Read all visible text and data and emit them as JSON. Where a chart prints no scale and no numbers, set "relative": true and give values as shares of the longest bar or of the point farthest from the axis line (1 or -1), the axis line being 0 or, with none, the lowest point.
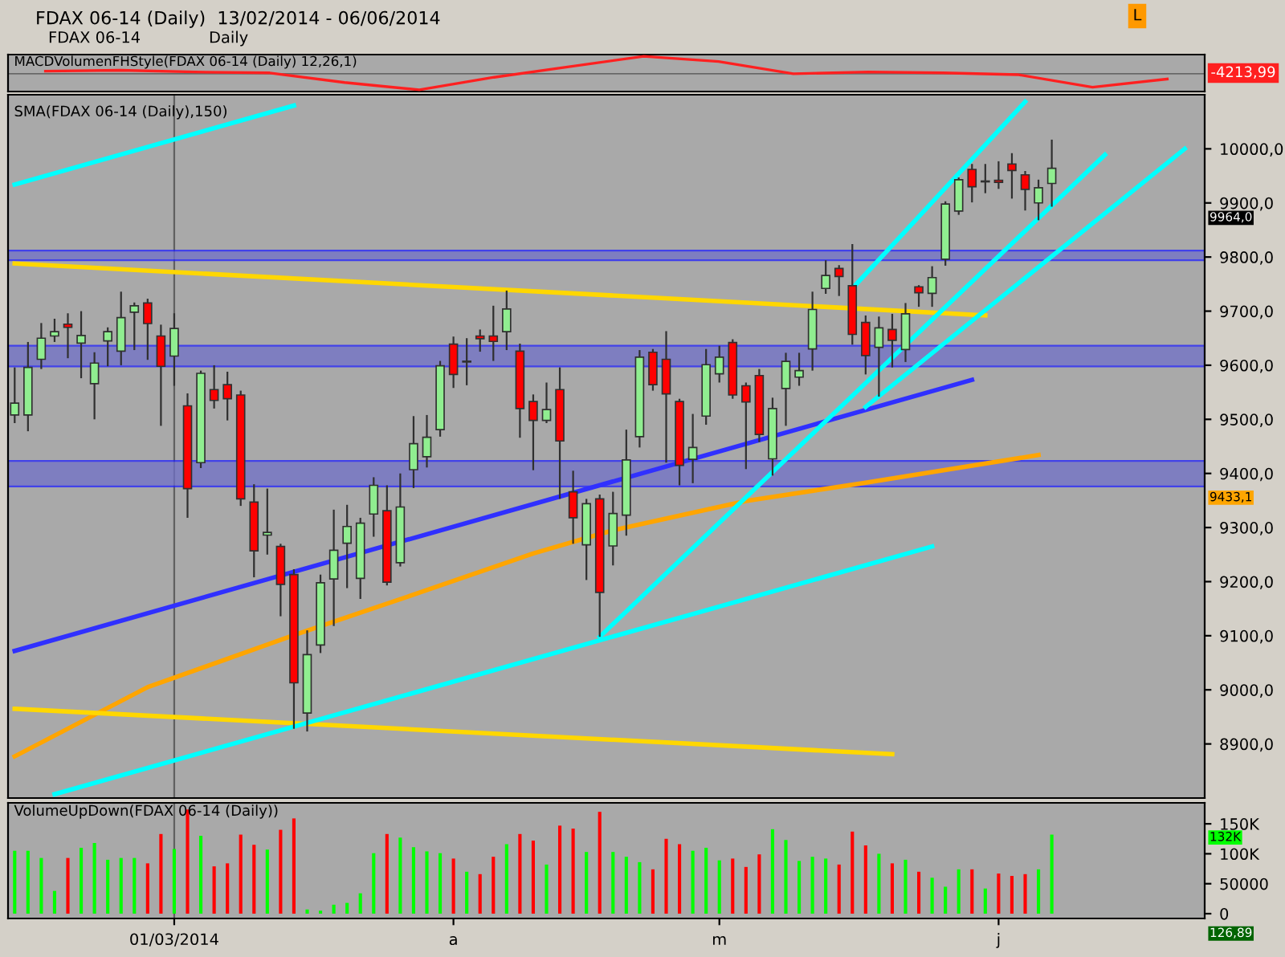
{
  "chart_data": [
    {
      "type": "line",
      "relative": true,
      "title": "FDAX 06-14 (Daily)  13/02/2014 - 06/06/2014",
      "tick_labels": false,
      "annotations": [
        "FDAX 06-14",
        "Daily",
        "L",
        "MACDVolumenFHStyle(FDAX 06-14 (Daily) 12,26,1)",
        "-4213,99"
      ],
      "categories": [
        null,
        null,
        null,
        null,
        null,
        null,
        null,
        null,
        null,
        null,
        null,
        null,
        null,
        null,
        null,
        null
      ],
      "series": [
        {
          "color": "#ff2020",
          "values": [
            0.15,
            0.2,
            0.1,
            0.05,
            -0.5,
            -0.92,
            -0.2,
            0.4,
            1,
            0.7,
            0,
            0.1,
            0.05,
            -0.05,
            -0.77,
            -0.3
          ]
        }
      ]
    },
    {
      "type": "candlestick",
      "tick_labels": "y",
      "ylim": [
        8800,
        10100
      ],
      "yticks": [
        {
          "value": 8900,
          "label": "8900,0"
        },
        {
          "value": 9000,
          "label": "9000,0"
        },
        {
          "value": 9100,
          "label": "9100,0"
        },
        {
          "value": 9200,
          "label": "9200,0"
        },
        {
          "value": 9300,
          "label": "9300,0"
        },
        {
          "value": 9400,
          "label": "9400,0"
        },
        {
          "value": 9500,
          "label": "9500,0"
        },
        {
          "value": 9600,
          "label": "9600,0"
        },
        {
          "value": 9700,
          "label": "9700,0"
        },
        {
          "value": 9800,
          "label": "9800,0"
        },
        {
          "value": 9900,
          "label": "9900,0"
        },
        {
          "value": 10000,
          "label": "10000,0"
        }
      ],
      "categories": [
        null,
        null,
        null,
        null,
        null,
        null,
        null,
        null,
        null,
        null,
        null,
        null,
        "01/03/2014",
        null,
        null,
        null,
        null,
        null,
        null,
        null,
        null,
        null,
        null,
        null,
        null,
        null,
        null,
        null,
        null,
        null,
        null,
        null,
        null,
        "a",
        null,
        null,
        null,
        null,
        null,
        null,
        null,
        null,
        null,
        null,
        null,
        null,
        null,
        null,
        null,
        null,
        null,
        null,
        null,
        "m",
        null,
        null,
        null,
        null,
        null,
        null,
        null,
        null,
        null,
        null,
        null,
        null,
        null,
        null,
        null,
        null,
        null,
        null,
        null,
        null,
        "j",
        null,
        null,
        null,
        null,
        null,
        null,
        null,
        null,
        null,
        null,
        null,
        null,
        null,
        null,
        null
      ],
      "ohlc": [
        [
          9508,
          9596,
          9493,
          9530
        ],
        [
          9508,
          9643,
          9478,
          9596
        ],
        [
          9611,
          9678,
          9593,
          9650
        ],
        [
          9654,
          9686,
          9643,
          9662
        ],
        [
          9676,
          9696,
          9613,
          9670
        ],
        [
          9641,
          9700,
          9576,
          9655
        ],
        [
          9566,
          9624,
          9500,
          9604
        ],
        [
          9645,
          9670,
          9598,
          9662
        ],
        [
          9626,
          9736,
          9600,
          9688
        ],
        [
          9698,
          9716,
          9628,
          9710
        ],
        [
          9715,
          9723,
          9610,
          9677
        ],
        [
          9654,
          9675,
          9488,
          9598
        ],
        [
          9617,
          9696,
          9562,
          9668
        ],
        [
          9525,
          9548,
          9318,
          9372
        ],
        [
          9420,
          9590,
          9410,
          9585
        ],
        [
          9555,
          9600,
          9520,
          9535
        ],
        [
          9564,
          9588,
          9498,
          9538
        ],
        [
          9545,
          9553,
          9340,
          9353
        ],
        [
          9347,
          9380,
          9208,
          9257
        ],
        [
          9286,
          9372,
          9250,
          9291
        ],
        [
          9265,
          9270,
          9136,
          9195
        ],
        [
          9213,
          9223,
          8928,
          9013
        ],
        [
          8957,
          9110,
          8923,
          9065
        ],
        [
          9083,
          9213,
          9068,
          9198
        ],
        [
          9205,
          9333,
          9118,
          9258
        ],
        [
          9271,
          9342,
          9188,
          9302
        ],
        [
          9206,
          9318,
          9168,
          9308
        ],
        [
          9325,
          9393,
          9283,
          9378
        ],
        [
          9331,
          9378,
          9193,
          9199
        ],
        [
          9235,
          9400,
          9228,
          9338
        ],
        [
          9407,
          9506,
          9373,
          9455
        ],
        [
          9431,
          9508,
          9411,
          9467
        ],
        [
          9481,
          9608,
          9468,
          9599
        ],
        [
          9639,
          9653,
          9558,
          9583
        ],
        [
          9606,
          9650,
          9563,
          9607
        ],
        [
          9654,
          9666,
          9625,
          9649
        ],
        [
          9654,
          9710,
          9608,
          9644
        ],
        [
          9662,
          9738,
          9628,
          9704
        ],
        [
          9626,
          9640,
          9466,
          9520
        ],
        [
          9533,
          9546,
          9406,
          9498
        ],
        [
          9498,
          9568,
          9493,
          9518
        ],
        [
          9555,
          9596,
          9353,
          9460
        ],
        [
          9366,
          9405,
          9270,
          9318
        ],
        [
          9268,
          9353,
          9203,
          9344
        ],
        [
          9353,
          9361,
          9098,
          9180
        ],
        [
          9266,
          9366,
          9230,
          9326
        ],
        [
          9323,
          9481,
          9285,
          9425
        ],
        [
          9468,
          9628,
          9448,
          9615
        ],
        [
          9624,
          9630,
          9553,
          9564
        ],
        [
          9611,
          9663,
          9420,
          9547
        ],
        [
          9533,
          9538,
          9378,
          9415
        ],
        [
          9426,
          9510,
          9382,
          9448
        ],
        [
          9506,
          9630,
          9490,
          9601
        ],
        [
          9584,
          9636,
          9568,
          9615
        ],
        [
          9642,
          9648,
          9538,
          9545
        ],
        [
          9562,
          9568,
          9408,
          9532
        ],
        [
          9581,
          9593,
          9458,
          9472
        ],
        [
          9427,
          9540,
          9396,
          9520
        ],
        [
          9557,
          9623,
          9488,
          9607
        ],
        [
          9578,
          9623,
          9562,
          9590
        ],
        [
          9630,
          9736,
          9590,
          9703
        ],
        [
          9742,
          9794,
          9732,
          9766
        ],
        [
          9779,
          9785,
          9728,
          9764
        ],
        [
          9747,
          9824,
          9638,
          9657
        ],
        [
          9679,
          9692,
          9583,
          9618
        ],
        [
          9633,
          9690,
          9542,
          9669
        ],
        [
          9666,
          9695,
          9596,
          9646
        ],
        [
          9629,
          9715,
          9606,
          9695
        ],
        [
          9745,
          9748,
          9708,
          9734
        ],
        [
          9733,
          9783,
          9708,
          9762
        ],
        [
          9796,
          9903,
          9784,
          9898
        ],
        [
          9885,
          9947,
          9878,
          9943
        ],
        [
          9962,
          9972,
          9901,
          9930
        ],
        [
          9939,
          9972,
          9918,
          9940
        ],
        [
          9942,
          9977,
          9926,
          9938
        ],
        [
          9972,
          9992,
          9908,
          9960
        ],
        [
          9952,
          9959,
          9886,
          9925
        ],
        [
          9900,
          9943,
          9868,
          9928
        ],
        [
          9936,
          10017,
          9893,
          9964
        ],
        null,
        null,
        null,
        null,
        null,
        null,
        null,
        null,
        null,
        null,
        null
      ],
      "colors": [
        "#90ee90",
        "#90ee90",
        "#90ee90",
        "#90ee90",
        "#ff0000",
        "#90ee90",
        "#90ee90",
        "#90ee90",
        "#90ee90",
        "#90ee90",
        "#ff0000",
        "#ff0000",
        "#90ee90",
        "#ff0000",
        "#90ee90",
        "#ff0000",
        "#ff0000",
        "#ff0000",
        "#ff0000",
        "#90ee90",
        "#ff0000",
        "#ff0000",
        "#90ee90",
        "#90ee90",
        "#90ee90",
        "#90ee90",
        "#90ee90",
        "#90ee90",
        "#ff0000",
        "#90ee90",
        "#90ee90",
        "#90ee90",
        "#90ee90",
        "#ff0000",
        "#90ee90",
        "#ff0000",
        "#ff0000",
        "#90ee90",
        "#ff0000",
        "#ff0000",
        "#90ee90",
        "#ff0000",
        "#ff0000",
        "#90ee90",
        "#ff0000",
        "#90ee90",
        "#90ee90",
        "#90ee90",
        "#ff0000",
        "#ff0000",
        "#ff0000",
        "#90ee90",
        "#90ee90",
        "#90ee90",
        "#ff0000",
        "#ff0000",
        "#ff0000",
        "#90ee90",
        "#90ee90",
        "#90ee90",
        "#90ee90",
        "#90ee90",
        "#ff0000",
        "#ff0000",
        "#ff0000",
        "#90ee90",
        "#ff0000",
        "#90ee90",
        "#ff0000",
        "#90ee90",
        "#90ee90",
        "#90ee90",
        "#ff0000",
        "#90ee90",
        "#ff0000",
        "#ff0000",
        "#ff0000",
        "#90ee90",
        "#90ee90",
        null,
        null,
        null,
        null,
        null,
        null,
        null,
        null,
        null,
        null,
        null
      ],
      "bands": [
        {
          "axis": "y",
          "from": 9794,
          "to": 9812,
          "color": "#7070c8"
        },
        {
          "axis": "y",
          "from": 9598,
          "to": 9636,
          "color": "#7070c8"
        },
        {
          "axis": "y",
          "from": 9376,
          "to": 9423,
          "color": "#7070c8"
        }
      ],
      "ref_lines": [
        {
          "axis": "x",
          "value": "01/03/2014",
          "color": "#606060"
        }
      ],
      "series": [
        {
          "type": "line",
          "color": "#ffa500",
          "values": [
            8877,
            null,
            null,
            null,
            null,
            null,
            null,
            null,
            null,
            null,
            9005,
            null,
            null,
            null,
            null,
            null,
            null,
            null,
            null,
            null,
            null,
            9101,
            null,
            null,
            null,
            null,
            null,
            null,
            null,
            null,
            9176,
            null,
            null,
            null,
            null,
            null,
            null,
            null,
            null,
            9252,
            null,
            null,
            null,
            null,
            null,
            9295,
            null,
            null,
            null,
            null,
            null,
            null,
            null,
            null,
            null,
            9349,
            null,
            null,
            null,
            null,
            null,
            null,
            null,
            null,
            9383,
            null,
            null,
            null,
            null,
            null,
            null,
            null,
            null,
            null,
            null,
            null,
            null,
            9434,
            null,
            null,
            null,
            null,
            null,
            null,
            null,
            null,
            null,
            null,
            null,
            null
          ]
        },
        {
          "type": "line",
          "color": "#ffd700",
          "values": [
            9788,
            null,
            null,
            null,
            null,
            null,
            null,
            null,
            null,
            null,
            null,
            null,
            null,
            null,
            null,
            null,
            null,
            null,
            null,
            null,
            null,
            null,
            null,
            null,
            null,
            null,
            null,
            null,
            null,
            null,
            null,
            null,
            null,
            null,
            null,
            null,
            null,
            null,
            null,
            null,
            null,
            null,
            null,
            null,
            null,
            null,
            null,
            null,
            null,
            null,
            null,
            null,
            null,
            null,
            null,
            null,
            null,
            null,
            null,
            null,
            null,
            null,
            null,
            null,
            null,
            null,
            null,
            null,
            null,
            null,
            null,
            null,
            null,
            9692,
            null,
            null,
            null,
            null,
            null,
            null,
            null,
            null,
            null,
            null,
            null,
            null,
            null,
            null,
            null,
            null
          ]
        },
        {
          "type": "line",
          "color": "#ffd700",
          "values": [
            8965,
            null,
            null,
            null,
            null,
            null,
            null,
            null,
            null,
            null,
            null,
            null,
            null,
            null,
            null,
            null,
            null,
            null,
            null,
            null,
            null,
            null,
            null,
            null,
            null,
            null,
            null,
            null,
            null,
            null,
            null,
            null,
            null,
            null,
            null,
            null,
            null,
            null,
            null,
            null,
            null,
            null,
            null,
            null,
            null,
            null,
            null,
            null,
            null,
            null,
            null,
            null,
            null,
            null,
            null,
            null,
            null,
            null,
            null,
            null,
            null,
            null,
            null,
            null,
            null,
            null,
            8881,
            null,
            null,
            null,
            null,
            null,
            null,
            null,
            null,
            null,
            null,
            null,
            null,
            null,
            null,
            null,
            null,
            null,
            null,
            null,
            null,
            null,
            null,
            null
          ]
        },
        {
          "type": "line",
          "color": "#3030ff",
          "values": [
            9072,
            null,
            null,
            null,
            null,
            null,
            null,
            null,
            null,
            null,
            null,
            null,
            null,
            null,
            null,
            null,
            null,
            null,
            null,
            null,
            null,
            null,
            null,
            null,
            null,
            null,
            null,
            null,
            null,
            null,
            null,
            null,
            null,
            null,
            null,
            null,
            null,
            null,
            null,
            null,
            null,
            null,
            null,
            null,
            null,
            null,
            null,
            null,
            null,
            null,
            null,
            null,
            null,
            null,
            null,
            null,
            null,
            null,
            null,
            null,
            null,
            null,
            null,
            null,
            null,
            null,
            null,
            null,
            null,
            null,
            null,
            null,
            9573,
            null,
            null,
            null,
            null,
            null,
            null,
            null,
            null,
            null,
            null,
            null,
            null,
            null,
            null,
            null,
            null,
            null
          ]
        },
        {
          "type": "line",
          "color": "#00ffff",
          "values": [
            9934,
            null,
            null,
            null,
            null,
            null,
            null,
            null,
            null,
            null,
            null,
            null,
            null,
            null,
            null,
            null,
            null,
            null,
            null,
            null,
            null,
            10080,
            null,
            null,
            null,
            null,
            null,
            null,
            null,
            null,
            null,
            null,
            null,
            null,
            null,
            null,
            null,
            null,
            null,
            null,
            null,
            null,
            null,
            null,
            null,
            null,
            null,
            null,
            null,
            null,
            null,
            null,
            null,
            null,
            null,
            null,
            null,
            null,
            null,
            null,
            null,
            null,
            null,
            null,
            null,
            null,
            null,
            null,
            null,
            null,
            null,
            null,
            null,
            null,
            null,
            null,
            null,
            null,
            null,
            null,
            null,
            null,
            null,
            null,
            null,
            null,
            null,
            null,
            null,
            null
          ]
        },
        {
          "type": "line",
          "color": "#00ffff",
          "values": [
            null,
            null,
            null,
            8807,
            null,
            null,
            null,
            null,
            null,
            null,
            null,
            null,
            null,
            null,
            null,
            null,
            null,
            null,
            null,
            null,
            null,
            null,
            null,
            null,
            null,
            null,
            null,
            null,
            null,
            null,
            null,
            null,
            null,
            null,
            null,
            null,
            null,
            null,
            null,
            null,
            null,
            null,
            null,
            null,
            null,
            null,
            null,
            null,
            null,
            null,
            null,
            null,
            null,
            null,
            null,
            null,
            null,
            null,
            null,
            null,
            null,
            null,
            null,
            null,
            null,
            null,
            null,
            null,
            null,
            9265,
            null,
            null,
            null,
            null,
            null,
            null,
            null,
            null,
            null,
            null,
            null,
            null,
            null,
            null,
            null,
            null,
            null,
            null,
            null,
            null
          ]
        },
        {
          "type": "line",
          "color": "#00ffff",
          "values": [
            null,
            null,
            null,
            null,
            null,
            null,
            null,
            null,
            null,
            null,
            null,
            null,
            null,
            null,
            null,
            null,
            null,
            null,
            null,
            null,
            null,
            null,
            null,
            null,
            null,
            null,
            null,
            null,
            null,
            null,
            null,
            null,
            null,
            null,
            null,
            null,
            null,
            null,
            null,
            null,
            null,
            null,
            null,
            null,
            9098,
            null,
            null,
            null,
            null,
            null,
            null,
            null,
            null,
            null,
            null,
            null,
            null,
            null,
            null,
            null,
            null,
            null,
            null,
            null,
            null,
            null,
            null,
            null,
            null,
            null,
            null,
            null,
            null,
            null,
            null,
            null,
            null,
            null,
            null,
            null,
            null,
            null,
            9989,
            null,
            null,
            null,
            null,
            null,
            null,
            null
          ]
        },
        {
          "type": "line",
          "color": "#00ffff",
          "values": [
            null,
            null,
            null,
            null,
            null,
            null,
            null,
            null,
            null,
            null,
            null,
            null,
            null,
            null,
            null,
            null,
            null,
            null,
            null,
            null,
            null,
            null,
            null,
            null,
            null,
            null,
            null,
            null,
            null,
            null,
            null,
            null,
            null,
            null,
            null,
            null,
            null,
            null,
            null,
            null,
            null,
            null,
            null,
            null,
            null,
            null,
            null,
            null,
            null,
            null,
            null,
            null,
            null,
            null,
            null,
            null,
            null,
            null,
            null,
            null,
            null,
            null,
            null,
            9742,
            null,
            null,
            null,
            null,
            null,
            null,
            null,
            null,
            null,
            null,
            null,
            null,
            10087,
            null,
            null,
            null,
            null,
            null,
            null,
            null,
            null,
            null,
            null,
            null,
            null,
            null
          ]
        },
        {
          "type": "line",
          "color": "#00ffff",
          "values": [
            null,
            null,
            null,
            null,
            null,
            null,
            null,
            null,
            null,
            null,
            null,
            null,
            null,
            null,
            null,
            null,
            null,
            null,
            null,
            null,
            null,
            null,
            null,
            null,
            null,
            null,
            null,
            null,
            null,
            null,
            null,
            null,
            null,
            null,
            null,
            null,
            null,
            null,
            null,
            null,
            null,
            null,
            null,
            null,
            null,
            null,
            null,
            null,
            null,
            null,
            null,
            null,
            null,
            null,
            null,
            null,
            null,
            null,
            null,
            null,
            null,
            null,
            null,
            null,
            9523,
            null,
            null,
            null,
            null,
            null,
            null,
            null,
            null,
            null,
            null,
            null,
            null,
            null,
            null,
            null,
            null,
            null,
            null,
            null,
            null,
            null,
            null,
            null,
            10000,
            null
          ]
        }
      ],
      "annotations": [
        "SMA(FDAX 06-14 (Daily),150)",
        "9964,0",
        "9433,1"
      ]
    },
    {
      "type": "bar",
      "ylim": [
        -8000,
        185000
      ],
      "yticks": [
        0,
        50000,
        {
          "value": 100000,
          "label": "100K"
        },
        {
          "value": 150000,
          "label": "150K"
        }
      ],
      "categories": [
        null,
        null,
        null,
        null,
        null,
        null,
        null,
        null,
        null,
        null,
        null,
        null,
        "01/03/2014",
        null,
        null,
        null,
        null,
        null,
        null,
        null,
        null,
        null,
        null,
        null,
        null,
        null,
        null,
        null,
        null,
        null,
        null,
        null,
        null,
        "a",
        null,
        null,
        null,
        null,
        null,
        null,
        null,
        null,
        null,
        null,
        null,
        null,
        null,
        null,
        null,
        null,
        null,
        null,
        null,
        "m",
        null,
        null,
        null,
        null,
        null,
        null,
        null,
        null,
        null,
        null,
        null,
        null,
        null,
        null,
        null,
        null,
        null,
        null,
        null,
        null,
        "j",
        null,
        null,
        null,
        null,
        null,
        null,
        null,
        null,
        null,
        null,
        null,
        null,
        null,
        null,
        null
      ],
      "values": [
        105000,
        105000,
        93000,
        38000,
        93000,
        110000,
        118000,
        90000,
        93000,
        93000,
        84000,
        133000,
        108000,
        174000,
        130000,
        79000,
        84000,
        132000,
        115000,
        107000,
        140000,
        159000,
        7000,
        5000,
        15000,
        18000,
        34000,
        101000,
        133000,
        127000,
        111000,
        104000,
        101000,
        92000,
        70000,
        66000,
        95000,
        116000,
        133000,
        122000,
        82000,
        147000,
        142000,
        103000,
        170000,
        103000,
        95000,
        86000,
        74000,
        125000,
        116000,
        105000,
        110000,
        89000,
        92000,
        78000,
        99000,
        141000,
        123000,
        88000,
        95000,
        92000,
        82000,
        137000,
        114000,
        100000,
        84000,
        90000,
        70000,
        60000,
        45000,
        74000,
        74000,
        42000,
        67000,
        63000,
        66000,
        74000,
        132000,
        null,
        null,
        null,
        null,
        null,
        null,
        null,
        null,
        null,
        null,
        null
      ],
      "colors": [
        "#00ff00",
        "#00ff00",
        "#00ff00",
        "#00ff00",
        "#ff0000",
        "#00ff00",
        "#00ff00",
        "#00ff00",
        "#00ff00",
        "#00ff00",
        "#ff0000",
        "#ff0000",
        "#00ff00",
        "#ff0000",
        "#00ff00",
        "#ff0000",
        "#ff0000",
        "#ff0000",
        "#ff0000",
        "#00ff00",
        "#ff0000",
        "#ff0000",
        "#00ff00",
        "#00ff00",
        "#00ff00",
        "#00ff00",
        "#00ff00",
        "#00ff00",
        "#ff0000",
        "#00ff00",
        "#00ff00",
        "#00ff00",
        "#00ff00",
        "#ff0000",
        "#00ff00",
        "#ff0000",
        "#ff0000",
        "#00ff00",
        "#ff0000",
        "#ff0000",
        "#00ff00",
        "#ff0000",
        "#ff0000",
        "#00ff00",
        "#ff0000",
        "#00ff00",
        "#00ff00",
        "#00ff00",
        "#ff0000",
        "#ff0000",
        "#ff0000",
        "#00ff00",
        "#00ff00",
        "#00ff00",
        "#ff0000",
        "#ff0000",
        "#ff0000",
        "#00ff00",
        "#00ff00",
        "#00ff00",
        "#00ff00",
        "#00ff00",
        "#ff0000",
        "#ff0000",
        "#ff0000",
        "#00ff00",
        "#ff0000",
        "#00ff00",
        "#ff0000",
        "#00ff00",
        "#00ff00",
        "#00ff00",
        "#ff0000",
        "#00ff00",
        "#ff0000",
        "#ff0000",
        "#ff0000",
        "#00ff00",
        "#00ff00",
        null,
        null,
        null,
        null,
        null,
        null,
        null,
        null,
        null,
        null,
        null
      ],
      "ref_lines": [
        {
          "axis": "x",
          "value": "01/03/2014",
          "color": "#606060"
        }
      ],
      "annotations": [
        "VolumeUpDown(FDAX 06-14 (Daily))",
        "132K",
        "126,89"
      ]
    }
  ]
}
